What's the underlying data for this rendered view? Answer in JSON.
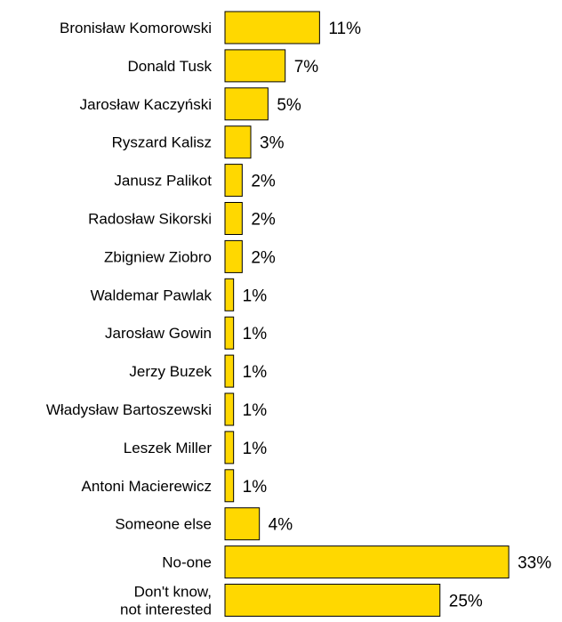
{
  "chart_data": {
    "type": "bar",
    "orientation": "horizontal",
    "title": "",
    "xlabel": "",
    "ylabel": "",
    "grid": false,
    "legend": "none",
    "bar_color": "#FFD800",
    "bar_stroke": "#000000",
    "xlim": [
      0,
      33
    ],
    "value_suffix": "%",
    "categories": [
      [
        "Bronisław Komorowski"
      ],
      [
        "Donald Tusk"
      ],
      [
        "Jarosław Kaczyński"
      ],
      [
        "Ryszard Kalisz"
      ],
      [
        "Janusz Palikot"
      ],
      [
        "Radosław Sikorski"
      ],
      [
        "Zbigniew Ziobro"
      ],
      [
        "Waldemar Pawlak"
      ],
      [
        "Jarosław Gowin"
      ],
      [
        "Jerzy Buzek"
      ],
      [
        "Władysław Bartoszewski"
      ],
      [
        "Leszek Miller"
      ],
      [
        "Antoni Macierewicz"
      ],
      [
        "Someone else"
      ],
      [
        "No-one"
      ],
      [
        "Don't know,",
        "not interested"
      ]
    ],
    "values": [
      11,
      7,
      5,
      3,
      2,
      2,
      2,
      1,
      1,
      1,
      1,
      1,
      1,
      4,
      33,
      25
    ],
    "value_labels": [
      "11%",
      "7%",
      "5%",
      "3%",
      "2%",
      "2%",
      "2%",
      "1%",
      "1%",
      "1%",
      "1%",
      "1%",
      "1%",
      "4%",
      "33%",
      "25%"
    ]
  }
}
